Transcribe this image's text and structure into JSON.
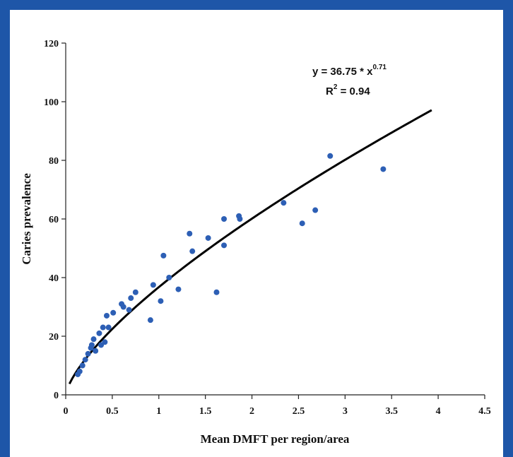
{
  "colors": {
    "frame": "#1e56a8",
    "points": "#2d5fb5",
    "curve": "#000000",
    "axis": "#222222"
  },
  "chart_data": {
    "type": "scatter",
    "title": "",
    "xlabel": "Mean DMFT per region/area",
    "ylabel": "Caries prevalence",
    "xlim": [
      0,
      4.5
    ],
    "ylim": [
      0,
      120
    ],
    "x_ticks": [
      "0",
      "0.5",
      "1",
      "1.5",
      "2",
      "2.5",
      "3",
      "3.5",
      "4",
      "4.5"
    ],
    "y_ticks": [
      "0",
      "20",
      "40",
      "60",
      "80",
      "100",
      "120"
    ],
    "grid": false,
    "legend": "none",
    "equation": {
      "lhs": "y = 36.75 * x",
      "exponent": "0.71",
      "r2_label": "R",
      "r2_exp": "2",
      "r2_value": " = 0.94"
    },
    "trendline": {
      "type": "power",
      "coefficient": 36.75,
      "exponent": 0.71,
      "x_range": [
        0.04,
        3.93
      ]
    },
    "points": [
      {
        "x": 0.13,
        "y": 7
      },
      {
        "x": 0.15,
        "y": 8
      },
      {
        "x": 0.18,
        "y": 10
      },
      {
        "x": 0.21,
        "y": 12
      },
      {
        "x": 0.24,
        "y": 14
      },
      {
        "x": 0.27,
        "y": 16
      },
      {
        "x": 0.28,
        "y": 17
      },
      {
        "x": 0.3,
        "y": 19
      },
      {
        "x": 0.32,
        "y": 15
      },
      {
        "x": 0.36,
        "y": 21
      },
      {
        "x": 0.38,
        "y": 17
      },
      {
        "x": 0.4,
        "y": 23
      },
      {
        "x": 0.42,
        "y": 18
      },
      {
        "x": 0.44,
        "y": 27
      },
      {
        "x": 0.46,
        "y": 23
      },
      {
        "x": 0.51,
        "y": 28
      },
      {
        "x": 0.6,
        "y": 31
      },
      {
        "x": 0.62,
        "y": 30
      },
      {
        "x": 0.68,
        "y": 29
      },
      {
        "x": 0.7,
        "y": 33
      },
      {
        "x": 0.75,
        "y": 35
      },
      {
        "x": 0.91,
        "y": 25.5
      },
      {
        "x": 0.94,
        "y": 37.5
      },
      {
        "x": 1.02,
        "y": 32
      },
      {
        "x": 1.05,
        "y": 47.5
      },
      {
        "x": 1.11,
        "y": 40
      },
      {
        "x": 1.21,
        "y": 36
      },
      {
        "x": 1.33,
        "y": 55
      },
      {
        "x": 1.36,
        "y": 49
      },
      {
        "x": 1.53,
        "y": 53.5
      },
      {
        "x": 1.62,
        "y": 35
      },
      {
        "x": 1.7,
        "y": 60
      },
      {
        "x": 1.7,
        "y": 51
      },
      {
        "x": 1.86,
        "y": 61
      },
      {
        "x": 1.87,
        "y": 60
      },
      {
        "x": 2.34,
        "y": 65.5
      },
      {
        "x": 2.54,
        "y": 58.5
      },
      {
        "x": 2.68,
        "y": 63
      },
      {
        "x": 2.84,
        "y": 81.5
      },
      {
        "x": 3.41,
        "y": 77
      }
    ]
  }
}
